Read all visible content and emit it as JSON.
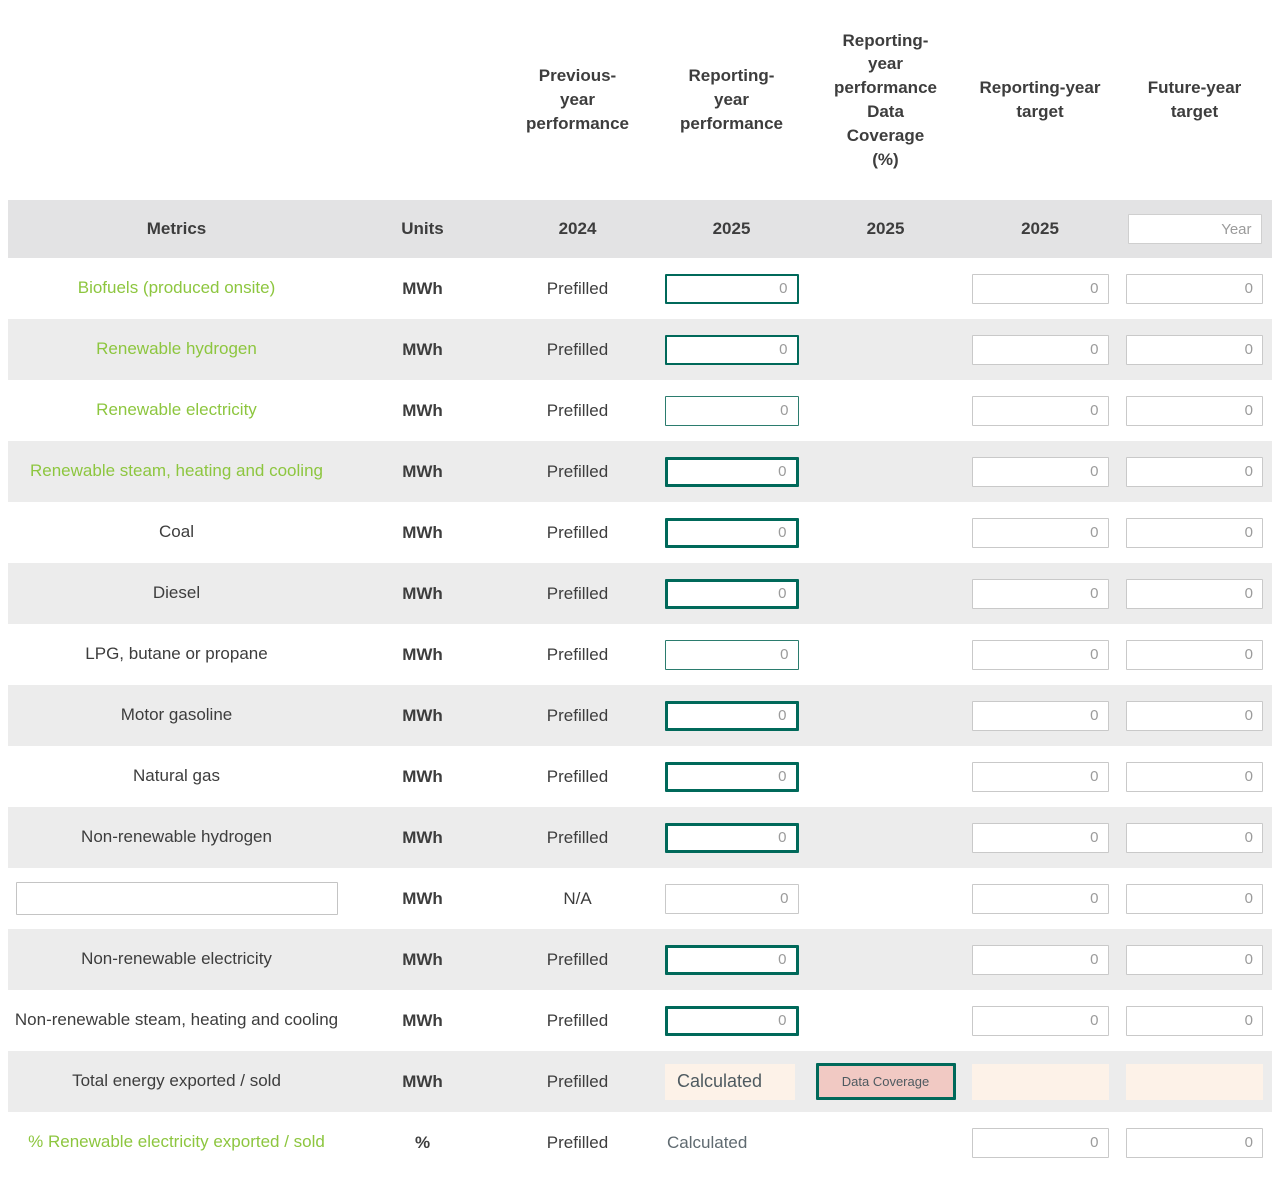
{
  "colors": {
    "accent_green": "#8dc63f",
    "accent_teal": "#00695a",
    "stripe_gray": "#ececec",
    "subheader_gray": "#e3e3e4",
    "peach_bg": "#fdf2e8",
    "pink_button_bg": "#f1c9c3"
  },
  "header": {
    "cols": {
      "prev_year": "Previous-year performance",
      "reporting_year": "Reporting-year performance",
      "data_coverage": "Reporting-year performance Data Coverage (%)",
      "reporting_target": "Reporting-year target",
      "future_target": "Future-year target"
    }
  },
  "subheader": {
    "metrics_label": "Metrics",
    "units_label": "Units",
    "prev_year": "2024",
    "reporting_year": "2025",
    "coverage_year": "2025",
    "target_year": "2025",
    "future_year_placeholder": "Year"
  },
  "labels": {
    "calculated": "Calculated",
    "data_coverage_button": "Data Coverage",
    "zero_placeholder": "0"
  },
  "rows": [
    {
      "metric": "Biofuels (produced onsite)",
      "green": true,
      "units": "MWh",
      "prev": "Prefilled",
      "perf": "input",
      "perf_border": "medium",
      "coverage": "",
      "targets": "input"
    },
    {
      "metric": "Renewable hydrogen",
      "green": true,
      "units": "MWh",
      "prev": "Prefilled",
      "perf": "input",
      "perf_border": "medium",
      "coverage": "",
      "targets": "input"
    },
    {
      "metric": "Renewable electricity",
      "green": true,
      "units": "MWh",
      "prev": "Prefilled",
      "perf": "input",
      "perf_border": "thin",
      "coverage": "",
      "targets": "input"
    },
    {
      "metric": "Renewable steam, heating and cooling",
      "green": true,
      "units": "MWh",
      "prev": "Prefilled",
      "perf": "input",
      "perf_border": "thick",
      "coverage": "",
      "targets": "input"
    },
    {
      "metric": "Coal",
      "green": false,
      "units": "MWh",
      "prev": "Prefilled",
      "perf": "input",
      "perf_border": "thick",
      "coverage": "",
      "targets": "input"
    },
    {
      "metric": "Diesel",
      "green": false,
      "units": "MWh",
      "prev": "Prefilled",
      "perf": "input",
      "perf_border": "thick",
      "coverage": "",
      "targets": "input"
    },
    {
      "metric": "LPG, butane or propane",
      "green": false,
      "units": "MWh",
      "prev": "Prefilled",
      "perf": "input",
      "perf_border": "thin",
      "coverage": "",
      "targets": "input"
    },
    {
      "metric": "Motor gasoline",
      "green": false,
      "units": "MWh",
      "prev": "Prefilled",
      "perf": "input",
      "perf_border": "thick",
      "coverage": "",
      "targets": "input"
    },
    {
      "metric": "Natural gas",
      "green": false,
      "units": "MWh",
      "prev": "Prefilled",
      "perf": "input",
      "perf_border": "thick",
      "coverage": "",
      "targets": "input"
    },
    {
      "metric": "Non-renewable hydrogen",
      "green": false,
      "units": "MWh",
      "prev": "Prefilled",
      "perf": "input",
      "perf_border": "thick",
      "coverage": "",
      "targets": "input"
    },
    {
      "metric": null,
      "metric_input": true,
      "green": false,
      "units": "MWh",
      "prev": "N/A",
      "perf": "input",
      "perf_border": "gray",
      "coverage": "",
      "targets": "input"
    },
    {
      "metric": "Non-renewable electricity",
      "green": false,
      "units": "MWh",
      "prev": "Prefilled",
      "perf": "input",
      "perf_border": "thick",
      "coverage": "",
      "targets": "input"
    },
    {
      "metric": "Non-renewable steam, heating and cooling",
      "green": false,
      "units": "MWh",
      "prev": "Prefilled",
      "perf": "input",
      "perf_border": "thick",
      "coverage": "",
      "targets": "input"
    },
    {
      "metric": "Total energy exported / sold",
      "green": false,
      "units": "MWh",
      "prev": "Prefilled",
      "perf": "calc_peach",
      "perf_border": "",
      "coverage": "button",
      "targets": "peach"
    },
    {
      "metric": "% Renewable electricity exported / sold",
      "green": true,
      "units": "%",
      "prev": "Prefilled",
      "perf": "calc_plain",
      "perf_border": "",
      "coverage": "",
      "targets": "input"
    }
  ]
}
